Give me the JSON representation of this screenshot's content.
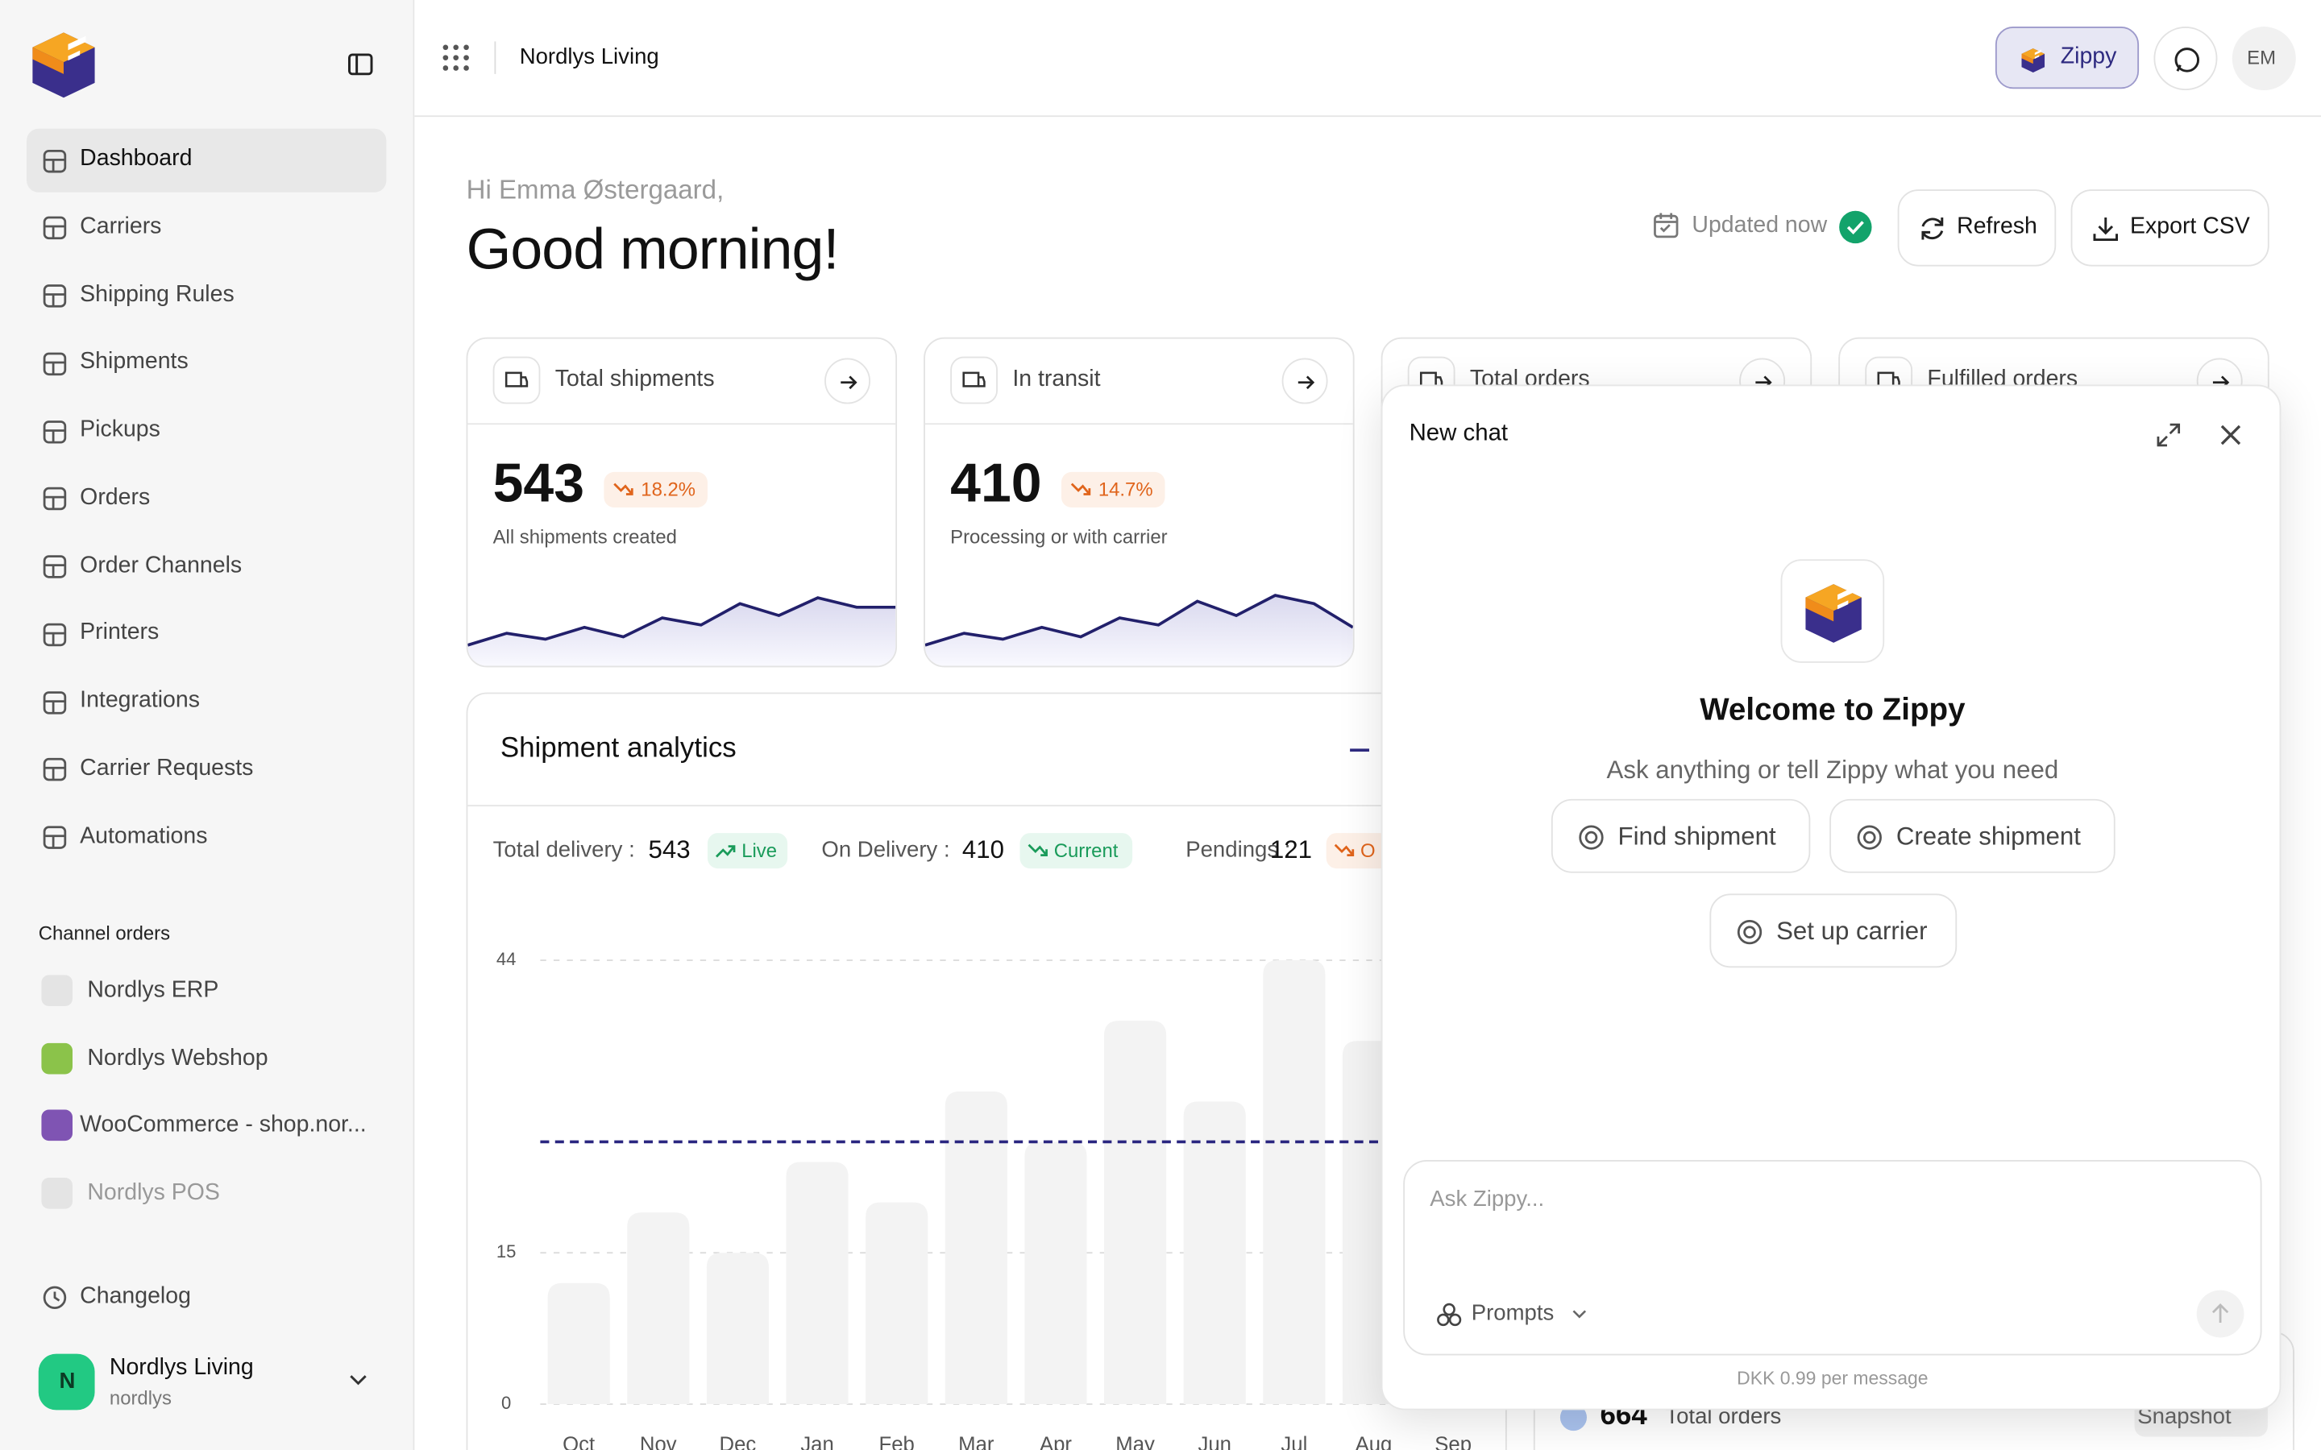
{
  "sidebar": {
    "nav": [
      "Dashboard",
      "Carriers",
      "Shipping Rules",
      "Shipments",
      "Pickups",
      "Orders",
      "Order Channels",
      "Printers",
      "Integrations",
      "Carrier Requests",
      "Automations"
    ],
    "channels_title": "Channel orders",
    "channels": [
      "Nordlys ERP",
      "Nordlys Webshop",
      "WooCommerce - shop.nor...",
      "Nordlys POS"
    ],
    "changelog": "Changelog",
    "account": {
      "avatar": "N",
      "name": "Nordlys Living",
      "handle": "nordlys"
    }
  },
  "topbar": {
    "workspace": "Nordlys Living",
    "zippy": "Zippy",
    "user": "EM"
  },
  "header": {
    "greeting": "Hi Emma Østergaard,",
    "title": "Good morning!",
    "status": "Updated now",
    "refresh": "Refresh",
    "export": "Export CSV"
  },
  "cards": [
    {
      "title": "Total shipments",
      "value": "543",
      "change": "18.2%",
      "caption": "All shipments created",
      "trend": [
        15,
        25,
        20,
        30,
        22,
        38,
        32,
        50,
        40,
        55,
        47,
        47
      ]
    },
    {
      "title": "In transit",
      "value": "410",
      "change": "14.7%",
      "caption": "Processing or with carrier",
      "trend": [
        15,
        25,
        20,
        30,
        22,
        38,
        32,
        52,
        40,
        57,
        50,
        30
      ]
    },
    {
      "title": "Total orders"
    },
    {
      "title": "Fulfilled orders"
    }
  ],
  "trend_ylim": [
    0,
    60
  ],
  "analytics": {
    "title": "Shipment analytics",
    "stats": [
      {
        "label": "Total delivery :",
        "value": "543",
        "badge": "Live"
      },
      {
        "label": "On Delivery :",
        "value": "410",
        "badge": "Current"
      },
      {
        "label": "Pendings :",
        "value": "121",
        "badge": "O"
      }
    ]
  },
  "chart_data": {
    "type": "bar",
    "categories": [
      "Oct",
      "Nov",
      "Dec",
      "Jan",
      "Feb",
      "Mar",
      "Apr",
      "May",
      "Jun",
      "Jul",
      "Aug",
      "Sep"
    ],
    "values": [
      12,
      19,
      15,
      24,
      20,
      31,
      26,
      38,
      30,
      44,
      36,
      null
    ],
    "color": "#f3f3f3",
    "reference_line": 26,
    "ylim": [
      0,
      44
    ],
    "yticks": [
      0,
      15,
      44
    ],
    "grid": true
  },
  "orders_summary": {
    "value": "664",
    "label": "Total orders",
    "badge": "Snapshot"
  },
  "chat": {
    "title": "New chat",
    "welcome": "Welcome to Zippy",
    "subtitle": "Ask anything or tell Zippy what you need",
    "actions": [
      "Find shipment",
      "Create shipment",
      "Set up carrier"
    ],
    "placeholder": "Ask Zippy...",
    "prompts": "Prompts",
    "cost": "DKK 0.99 per message"
  }
}
